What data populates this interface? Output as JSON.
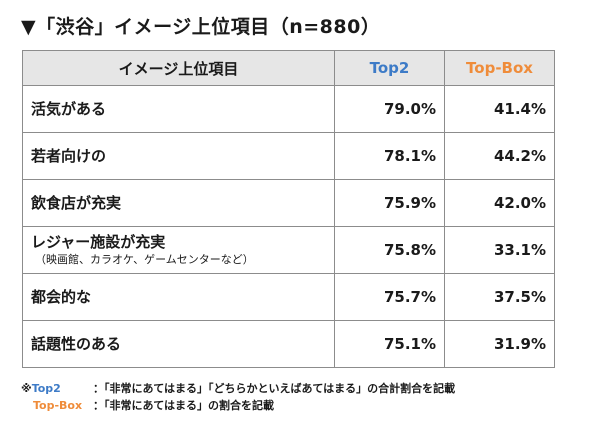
{
  "title": "▼「渋谷」イメージ上位項目（n=880）",
  "colors": {
    "top2": "#3d7bc7",
    "top_box": "#ef8c3a",
    "header_bg": "#e6e6e6"
  },
  "table": {
    "headers": {
      "item": "イメージ上位項目",
      "top2": "Top2",
      "top_box": "Top-Box"
    },
    "rows": [
      {
        "item": "活気がある",
        "sub": "",
        "top2": "79.0%",
        "top_box": "41.4%"
      },
      {
        "item": "若者向けの",
        "sub": "",
        "top2": "78.1%",
        "top_box": "44.2%"
      },
      {
        "item": "飲食店が充実",
        "sub": "",
        "top2": "75.9%",
        "top_box": "42.0%"
      },
      {
        "item": "レジャー施設が充実",
        "sub": "（映画館、カラオケ、ゲームセンターなど）",
        "top2": "75.8%",
        "top_box": "33.1%"
      },
      {
        "item": "都会的な",
        "sub": "",
        "top2": "75.7%",
        "top_box": "37.5%"
      },
      {
        "item": "話題性のある",
        "sub": "",
        "top2": "75.1%",
        "top_box": "31.9%"
      }
    ]
  },
  "notes": {
    "mark": "※",
    "top2_key": "Top2",
    "top2_text": "：「非常にあてはまる」「どちらかといえばあてはまる」の合計割合を記載",
    "top_box_key": "Top-Box",
    "top_box_text": "：「非常にあてはまる」の割合を記載"
  }
}
